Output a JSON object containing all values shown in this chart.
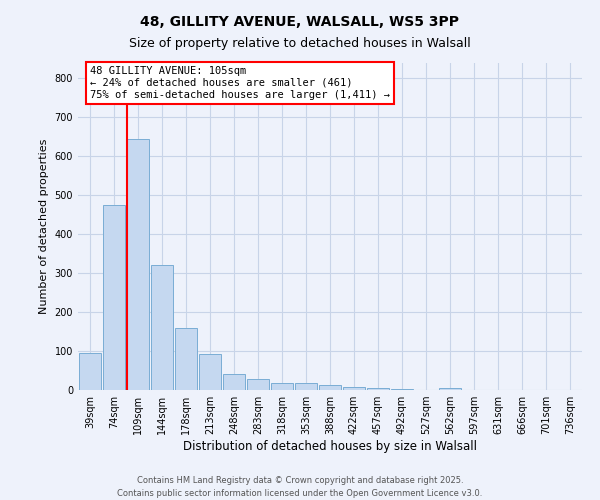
{
  "title1": "48, GILLITY AVENUE, WALSALL, WS5 3PP",
  "title2": "Size of property relative to detached houses in Walsall",
  "xlabel": "Distribution of detached houses by size in Walsall",
  "ylabel": "Number of detached properties",
  "categories": [
    "39sqm",
    "74sqm",
    "109sqm",
    "144sqm",
    "178sqm",
    "213sqm",
    "248sqm",
    "283sqm",
    "318sqm",
    "353sqm",
    "388sqm",
    "422sqm",
    "457sqm",
    "492sqm",
    "527sqm",
    "562sqm",
    "597sqm",
    "631sqm",
    "666sqm",
    "701sqm",
    "736sqm"
  ],
  "values": [
    95,
    475,
    645,
    320,
    158,
    92,
    40,
    27,
    17,
    17,
    13,
    7,
    5,
    3,
    1,
    5,
    1,
    0,
    0,
    0,
    0
  ],
  "bar_color": "#c5d8f0",
  "bar_edgecolor": "#7aadd4",
  "vline_color": "red",
  "vline_x_idx": 2,
  "annotation_text": "48 GILLITY AVENUE: 105sqm\n← 24% of detached houses are smaller (461)\n75% of semi-detached houses are larger (1,411) →",
  "annotation_box_edgecolor": "red",
  "annotation_box_facecolor": "white",
  "ylim": [
    0,
    840
  ],
  "yticks": [
    0,
    100,
    200,
    300,
    400,
    500,
    600,
    700,
    800
  ],
  "footer1": "Contains HM Land Registry data © Crown copyright and database right 2025.",
  "footer2": "Contains public sector information licensed under the Open Government Licence v3.0.",
  "bg_color": "#eef2fb",
  "grid_color": "#c8d4e8",
  "title1_fontsize": 10,
  "title2_fontsize": 9,
  "xlabel_fontsize": 8.5,
  "ylabel_fontsize": 8,
  "tick_fontsize": 7,
  "footer_fontsize": 6,
  "ann_fontsize": 7.5
}
